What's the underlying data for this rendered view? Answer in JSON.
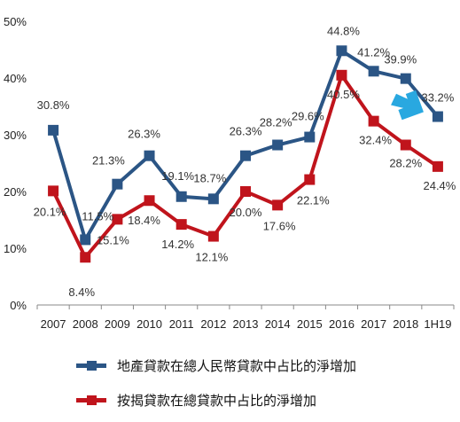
{
  "chart_data": {
    "type": "line",
    "categories": [
      "2007",
      "2008",
      "2009",
      "2010",
      "2011",
      "2012",
      "2013",
      "2014",
      "2015",
      "2016",
      "2017",
      "2018",
      "1H19"
    ],
    "ylim": [
      0,
      50
    ],
    "yticks": [
      "0%",
      "10%",
      "20%",
      "30%",
      "40%",
      "50%"
    ],
    "grid": false,
    "legend_position": "bottom",
    "series": [
      {
        "name": "地產貸款在總人民幣貸款中占比的淨增加",
        "color": "#2b5585",
        "values": [
          30.8,
          11.5,
          21.3,
          26.3,
          19.1,
          18.7,
          26.3,
          28.2,
          29.6,
          44.8,
          41.2,
          39.9,
          33.2
        ],
        "labels": [
          "30.8%",
          "11.5%",
          "21.3%",
          "26.3%",
          "19.1%",
          "18.7%",
          "26.3%",
          "28.2%",
          "29.6%",
          "44.8%",
          "41.2%",
          "39.9%",
          "33.2%"
        ]
      },
      {
        "name": "按揭貸款在總貸款中占比的淨增加",
        "color": "#c0141c",
        "values": [
          20.1,
          8.4,
          15.1,
          18.4,
          14.2,
          12.1,
          20.0,
          17.6,
          22.1,
          40.5,
          32.4,
          28.2,
          24.4
        ],
        "labels": [
          "20.1%",
          "8.4%",
          "15.1%",
          "18.4%",
          "14.2%",
          "12.1%",
          "20.0%",
          "17.6%",
          "22.1%",
          "40.5%",
          "32.4%",
          "28.2%",
          "24.4%"
        ]
      }
    ],
    "annotation": {
      "type": "arrow",
      "color": "#29a8e0",
      "direction": "down-right"
    }
  }
}
